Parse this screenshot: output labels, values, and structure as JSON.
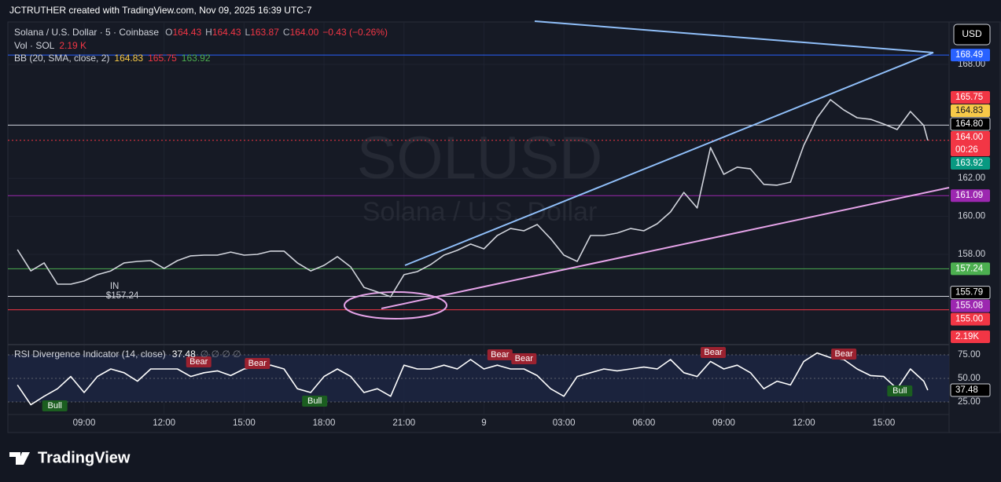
{
  "header": "JCTRUTHER created with TradingView.com, Nov 09, 2025 16:39 UTC-7",
  "legend": {
    "symbol": "Solana / U.S. Dollar · 5 · Coinbase",
    "ohlc": [
      {
        "k": "O",
        "v": "164.43"
      },
      {
        "k": "H",
        "v": "164.43"
      },
      {
        "k": "L",
        "v": "163.87"
      },
      {
        "k": "C",
        "v": "164.00"
      }
    ],
    "change": "−0.43 (−0.26%)",
    "vol_label": "Vol · SOL",
    "vol_value": "2.19 K",
    "bb_label": "BB (20, SMA, close, 2)",
    "bb_values": [
      "164.83",
      "165.75",
      "163.92"
    ],
    "rsi_label": "RSI Divergence Indicator (14, close)",
    "rsi_empty": "∅ ∅ ∅ ∅"
  },
  "watermark": "SOLUSD",
  "watermark_sub": "Solana / U.S. Dollar",
  "currency": "USD",
  "footer": "TradingView",
  "volume_last": {
    "value": 2190,
    "label": "2.19K",
    "color": "#f23645"
  },
  "chart_data": [
    {
      "type": "line",
      "color": "#d1d4dc",
      "x": [
        6.5,
        7,
        7.5,
        8,
        8.5,
        9,
        9.5,
        10,
        10.5,
        11,
        11.5,
        12,
        12.5,
        13,
        13.5,
        14,
        14.5,
        15,
        15.5,
        16,
        16.5,
        17,
        17.5,
        18,
        18.5,
        19,
        19.5,
        20,
        20.5,
        21,
        21.5,
        22,
        22.5,
        23,
        23.5,
        24,
        24.5,
        25,
        25.5,
        26,
        26.5,
        27,
        27.5,
        28,
        28.5,
        29,
        29.5,
        30,
        30.5,
        31,
        31.5,
        32,
        32.5,
        33,
        33.5,
        34,
        34.5,
        35,
        35.5,
        36,
        36.5,
        37,
        37.5,
        38,
        38.5,
        39,
        39.5,
        40,
        40.5,
        40.65
      ],
      "values": [
        158.25,
        157.13,
        157.55,
        156.43,
        156.43,
        156.6,
        156.93,
        157.13,
        157.55,
        157.63,
        157.67,
        157.26,
        157.67,
        157.92,
        157.96,
        157.96,
        158.12,
        157.96,
        158.0,
        158.17,
        158.17,
        157.55,
        157.13,
        157.42,
        157.88,
        157.34,
        156.26,
        156.02,
        155.77,
        156.93,
        157.09,
        157.46,
        157.96,
        158.21,
        158.54,
        158.29,
        158.99,
        159.36,
        159.24,
        159.57,
        158.83,
        157.96,
        157.63,
        158.99,
        158.99,
        159.12,
        159.36,
        159.24,
        159.61,
        160.23,
        161.26,
        160.44,
        163.62,
        162.21,
        162.59,
        162.5,
        161.68,
        161.64,
        161.8,
        163.74,
        165.19,
        166.14,
        165.6,
        165.19,
        165.11,
        164.86,
        164.57,
        165.52,
        164.78,
        164.0
      ],
      "xlim": [
        6.14,
        41.45
      ],
      "xticks": [
        {
          "value": 9,
          "label": "09:00"
        },
        {
          "value": 12,
          "label": "12:00"
        },
        {
          "value": 15,
          "label": "15:00"
        },
        {
          "value": 18,
          "label": "18:00"
        },
        {
          "value": 21,
          "label": "21:00"
        },
        {
          "value": 24,
          "label": "9"
        },
        {
          "value": 27,
          "label": "03:00"
        },
        {
          "value": 30,
          "label": "06:00"
        },
        {
          "value": 33,
          "label": "09:00"
        },
        {
          "value": 36,
          "label": "12:00"
        },
        {
          "value": 39,
          "label": "15:00"
        }
      ],
      "ylim": [
        153.29,
        170.23
      ],
      "yticks": [
        {
          "value": 168,
          "label": "168.00"
        },
        {
          "value": 162,
          "label": "162.00"
        },
        {
          "value": 160,
          "label": "160.00"
        },
        {
          "value": 158,
          "label": "158.00"
        }
      ],
      "grid": true,
      "levels": [
        {
          "value": 168.49,
          "color": "#2962ff",
          "line": "solid"
        },
        {
          "value": 165.75,
          "color": "#f23645"
        },
        {
          "value": 164.83,
          "color": "#f7c948",
          "text_color": "#131722"
        },
        {
          "value": 164.8,
          "label": "164.80",
          "color": "#000000",
          "border": "#d1d4dc",
          "line": "solid",
          "line_color": "#d1d4dc"
        },
        {
          "value": 164,
          "label": "164.00",
          "countdown": "00:26",
          "color": "#f23645",
          "line": "dotted"
        },
        {
          "value": 163.92,
          "color": "#089981"
        },
        {
          "value": 161.09,
          "color": "#9c27b0",
          "line": "solid"
        },
        {
          "value": 157.24,
          "color": "#4caf50",
          "line": "solid"
        },
        {
          "value": 155.79,
          "color": "#000000",
          "border": "#d1d4dc",
          "line": "solid",
          "line_color": "#d1d4dc"
        },
        {
          "value": 155.08,
          "color": "#9c27b0",
          "line": "solid",
          "line_color": "#f23645"
        },
        {
          "value": 155,
          "label": "155.00",
          "color": "#f23645"
        }
      ],
      "annotations": [
        {
          "x": 9.97,
          "y": 156.3,
          "lines": [
            "IN",
            "$157.24"
          ],
          "color": "#4caf50"
        }
      ]
    },
    {
      "type": "line",
      "color": "#ffffff",
      "x": [
        6.5,
        7,
        7.5,
        8,
        8.5,
        9,
        9.5,
        10,
        10.5,
        11,
        11.5,
        12,
        12.5,
        13,
        13.5,
        14,
        14.5,
        15,
        15.5,
        16,
        16.5,
        17,
        17.5,
        18,
        18.5,
        19,
        19.5,
        20,
        20.5,
        21,
        21.5,
        22,
        22.5,
        23,
        23.5,
        24,
        24.5,
        25,
        25.5,
        26,
        26.5,
        27,
        27.5,
        28,
        28.5,
        29,
        29.5,
        30,
        30.5,
        31,
        31.5,
        32,
        32.5,
        33,
        33.5,
        34,
        34.5,
        35,
        35.5,
        36,
        36.5,
        37,
        37.5,
        38,
        38.5,
        39,
        39.5,
        40,
        40.5,
        40.65
      ],
      "values": [
        43,
        22,
        31,
        39,
        52,
        35,
        52,
        60,
        56,
        47,
        60,
        60,
        60,
        52,
        56,
        58,
        53,
        60,
        62,
        64,
        60,
        39,
        35,
        52,
        60,
        52,
        35,
        39,
        31,
        64,
        60,
        60,
        64,
        60,
        70,
        60,
        64,
        60,
        60,
        53,
        39,
        31,
        52,
        56,
        60,
        58,
        60,
        62,
        60,
        70,
        56,
        52,
        68,
        60,
        64,
        56,
        39,
        47,
        43,
        68,
        77,
        72,
        70,
        60,
        53,
        52,
        39,
        60,
        47,
        37.48
      ],
      "xlim": [
        6.14,
        41.45
      ],
      "ylim": [
        11.67,
        85
      ],
      "yticks": [
        {
          "value": 75,
          "label": "75.00"
        },
        {
          "value": 50,
          "label": "50.00"
        },
        {
          "value": 25,
          "label": "25.00"
        }
      ],
      "annotations": [
        {
          "x": 7.9,
          "y": 20.8,
          "label": "Bull",
          "color": "#1b5e20"
        },
        {
          "x": 13.3,
          "y": 67.5,
          "label": "Bear",
          "color": "#9b2230"
        },
        {
          "x": 15.5,
          "y": 65.8,
          "label": "Bear",
          "color": "#9b2230"
        },
        {
          "x": 17.65,
          "y": 25.8,
          "label": "Bull",
          "color": "#1b5e20"
        },
        {
          "x": 24.6,
          "y": 75,
          "label": "Bear",
          "color": "#9b2230"
        },
        {
          "x": 25.5,
          "y": 70.8,
          "label": "Bear",
          "color": "#9b2230"
        },
        {
          "x": 32.6,
          "y": 77.5,
          "label": "Bear",
          "color": "#9b2230"
        },
        {
          "x": 37.5,
          "y": 75.8,
          "label": "Bear",
          "color": "#9b2230"
        },
        {
          "x": 39.6,
          "y": 36.7,
          "label": "Bull",
          "color": "#1b5e20"
        }
      ]
    }
  ]
}
